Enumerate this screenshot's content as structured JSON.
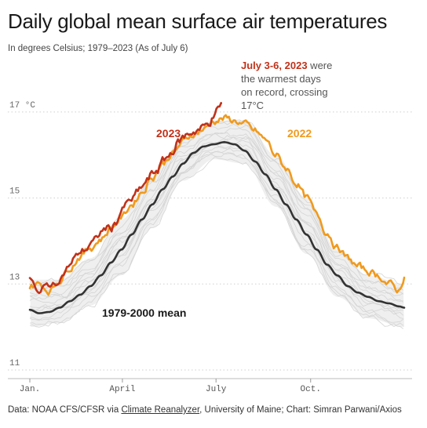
{
  "header": {
    "title": "Daily global mean surface air temperatures",
    "subtitle": "In degrees Celsius; 1979–2023 (As of July 6)"
  },
  "footer": {
    "prefix": "Data: NOAA CFS/CFSR via ",
    "link": "Climate Reanalyzer",
    "suffix": ", University of Maine; Chart: Simran Parwani/Axios"
  },
  "annotations": {
    "series_2023": "2023",
    "series_2022": "2022",
    "mean": "1979-2000 mean",
    "record_bold": "July 3-6, 2023",
    "record_l1_rest": " were",
    "record_l2": "the warmest days",
    "record_l3": "on record, crossing",
    "record_l4": "17°C"
  },
  "colors": {
    "y2023": "#c0321a",
    "y2022": "#f09a1e",
    "mean": "#333333",
    "background_years": "#d4d4d4"
  },
  "chart_data": {
    "type": "line",
    "title": "Daily global mean surface air temperatures",
    "ylabel": "",
    "xlabel": "",
    "unit": "°C",
    "ylim": [
      11,
      17.6
    ],
    "yticks": [
      {
        "value": 11,
        "label": "11"
      },
      {
        "value": 13,
        "label": "13"
      },
      {
        "value": 15,
        "label": "15"
      },
      {
        "value": 17,
        "label": "17 °C"
      }
    ],
    "xticks": [
      {
        "day": 1,
        "label": "Jan."
      },
      {
        "day": 91,
        "label": "April"
      },
      {
        "day": 182,
        "label": "July"
      },
      {
        "day": 274,
        "label": "Oct."
      }
    ],
    "xlim": [
      1,
      365
    ],
    "grid": "horizontal dotted",
    "series": [
      {
        "name": "2023",
        "x": [
          1,
          5,
          10,
          15,
          20,
          25,
          30,
          35,
          40,
          45,
          50,
          55,
          60,
          65,
          70,
          75,
          80,
          85,
          90,
          95,
          100,
          105,
          110,
          115,
          120,
          125,
          130,
          135,
          140,
          145,
          150,
          155,
          160,
          165,
          170,
          175,
          180,
          184,
          187
        ],
        "y": [
          13.15,
          12.95,
          12.75,
          12.9,
          13.0,
          12.95,
          13.15,
          13.3,
          13.45,
          13.6,
          13.75,
          13.8,
          13.95,
          14.0,
          14.2,
          14.3,
          14.3,
          14.45,
          14.7,
          14.85,
          14.95,
          15.1,
          15.25,
          15.4,
          15.55,
          15.65,
          15.85,
          15.95,
          16.1,
          16.3,
          16.4,
          16.5,
          16.55,
          16.6,
          16.65,
          16.75,
          16.9,
          17.05,
          17.2
        ]
      },
      {
        "name": "2022",
        "x": [
          1,
          10,
          20,
          30,
          40,
          50,
          60,
          70,
          80,
          90,
          100,
          110,
          120,
          130,
          140,
          150,
          160,
          170,
          180,
          190,
          200,
          210,
          220,
          230,
          240,
          250,
          260,
          270,
          280,
          290,
          300,
          310,
          320,
          330,
          340,
          350,
          360,
          365
        ],
        "y": [
          12.95,
          13.0,
          12.85,
          13.1,
          13.4,
          13.65,
          13.85,
          14.05,
          14.3,
          14.55,
          14.85,
          15.15,
          15.5,
          15.8,
          16.05,
          16.3,
          16.5,
          16.6,
          16.8,
          16.85,
          16.8,
          16.7,
          16.55,
          16.35,
          16.0,
          15.7,
          15.35,
          15.0,
          14.6,
          14.2,
          13.85,
          13.6,
          13.4,
          13.3,
          13.2,
          13.0,
          12.85,
          13.15
        ]
      },
      {
        "name": "1979-2000 mean",
        "x": [
          1,
          10,
          20,
          30,
          40,
          50,
          60,
          70,
          80,
          90,
          100,
          110,
          120,
          130,
          140,
          150,
          160,
          170,
          180,
          190,
          200,
          210,
          220,
          230,
          240,
          250,
          260,
          270,
          280,
          290,
          300,
          310,
          320,
          330,
          340,
          350,
          360,
          365
        ],
        "y": [
          12.4,
          12.32,
          12.35,
          12.45,
          12.6,
          12.75,
          12.95,
          13.2,
          13.5,
          13.8,
          14.15,
          14.5,
          14.85,
          15.2,
          15.5,
          15.8,
          16.05,
          16.2,
          16.25,
          16.3,
          16.25,
          16.1,
          15.85,
          15.55,
          15.2,
          14.85,
          14.5,
          14.15,
          13.8,
          13.45,
          13.2,
          12.95,
          12.8,
          12.7,
          12.6,
          12.55,
          12.48,
          12.45
        ]
      }
    ],
    "background_band": {
      "description_for_style_only": false,
      "x": [
        1,
        30,
        60,
        90,
        120,
        150,
        180,
        210,
        240,
        270,
        300,
        330,
        365
      ],
      "low": [
        12.0,
        12.1,
        12.5,
        13.2,
        14.3,
        15.4,
        15.9,
        15.8,
        14.8,
        13.7,
        12.7,
        12.2,
        12.0
      ],
      "high": [
        13.1,
        13.1,
        13.6,
        14.5,
        15.5,
        16.4,
        16.8,
        16.8,
        16.0,
        15.0,
        13.8,
        13.2,
        13.0
      ]
    }
  }
}
